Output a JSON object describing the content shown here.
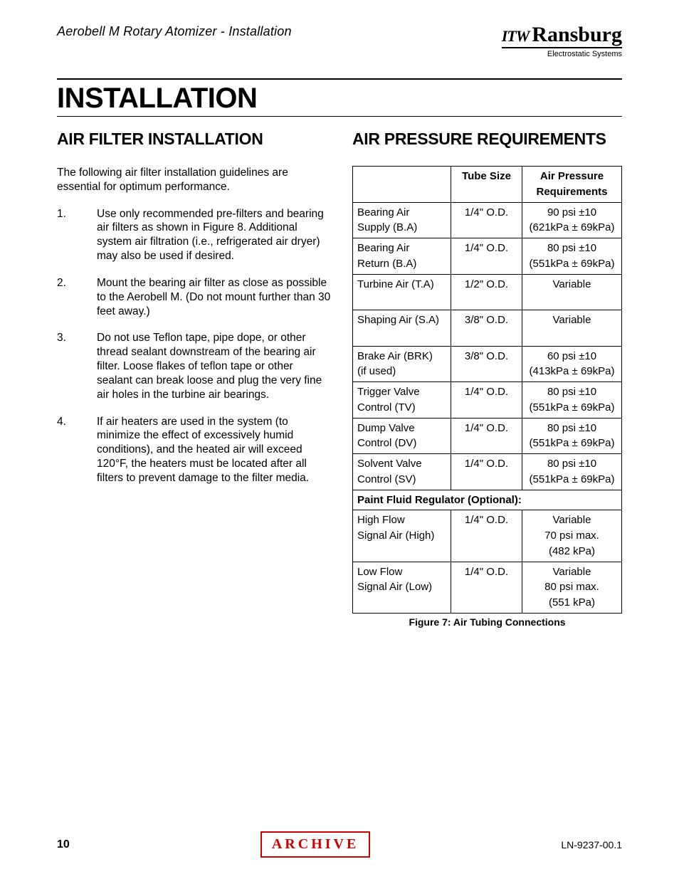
{
  "header": {
    "doc_title": "Aerobell M Rotary Atomizer - Installation",
    "logo_prefix": "ITW",
    "logo_main": "Ransburg",
    "logo_sub": "Electrostatic Systems"
  },
  "main_heading": "INSTALLATION",
  "left": {
    "heading": "AIR FILTER INSTALLATION",
    "intro": "The following air filter installation guidelines are essential for optimum performance.",
    "items": [
      "Use only recommended pre-filters and bearing air filters as shown in Figure 8. Additional system air filtration (i.e., refrigerated air dryer) may also be used if  desired.",
      "Mount the bearing air filter as close as possible to the Aerobell M.  (Do not mount further than 30 feet away.)",
      "Do not use Teflon tape, pipe dope, or other thread sealant downstream of the bearing air filter.  Loose flakes of teflon tape or other sealant can break loose and plug the very fine air holes in the turbine air bearings.",
      "If air heaters are used in the system (to minimize the effect of excessively humid conditions), and the heated air will exceed 120°F, the heaters must be located after all filters to prevent damage to the filter media."
    ]
  },
  "right": {
    "heading": "AIR PRESSURE REQUIREMENTS",
    "table": {
      "headers": [
        "",
        "Tube Size",
        "Air Pressure Requirements"
      ],
      "rows": [
        {
          "c1a": "Bearing Air",
          "c1b": "Supply (B.A)",
          "c2": "1/4\" O.D.",
          "c3a": "90 psi ±10",
          "c3b": "(621kPa ± 69kPa)"
        },
        {
          "c1a": "Bearing Air",
          "c1b": "Return (B.A)",
          "c2": "1/4\" O.D.",
          "c3a": "80 psi ±10",
          "c3b": "(551kPa ± 69kPa)"
        },
        {
          "c1a": "Turbine Air (T.A)",
          "c1b": "",
          "c2": "1/2\" O.D.",
          "c3a": "Variable",
          "c3b": ""
        },
        {
          "c1a": "Shaping Air (S.A)",
          "c1b": "",
          "c2": "3/8\" O.D.",
          "c3a": "Variable",
          "c3b": ""
        },
        {
          "c1a": "Brake Air (BRK)",
          "c1b": "(if used)",
          "c2": "3/8\" O.D.",
          "c3a": "60 psi ±10",
          "c3b": "(413kPa ± 69kPa)"
        },
        {
          "c1a": "Trigger Valve",
          "c1b": "Control (TV)",
          "c2": "1/4\" O.D.",
          "c3a": "80 psi ±10",
          "c3b": "(551kPa ± 69kPa)"
        },
        {
          "c1a": "Dump Valve",
          "c1b": "Control (DV)",
          "c2": "1/4\" O.D.",
          "c3a": "80 psi ±10",
          "c3b": "(551kPa ± 69kPa)"
        },
        {
          "c1a": "Solvent Valve",
          "c1b": "Control (SV)",
          "c2": "1/4\" O.D.",
          "c3a": "80 psi ±10",
          "c3b": "(551kPa ± 69kPa)"
        }
      ],
      "span_label": "Paint Fluid Regulator (Optional):",
      "rows2": [
        {
          "c1a": "High Flow",
          "c1b": "Signal Air (High)",
          "c2": "1/4\" O.D.",
          "c3a": "Variable",
          "c3b": "70 psi max.",
          "c3c": "(482 kPa)"
        },
        {
          "c1a": "Low Flow",
          "c1b": "Signal Air (Low)",
          "c2": "1/4\" O.D.",
          "c3a": "Variable",
          "c3b": "80 psi max.",
          "c3c": "(551 kPa)"
        }
      ]
    },
    "figure_caption": "Figure 7:  Air Tubing Connections"
  },
  "footer": {
    "page": "10",
    "badge": "ARCHIVE",
    "code": "LN-9237-00.1"
  }
}
